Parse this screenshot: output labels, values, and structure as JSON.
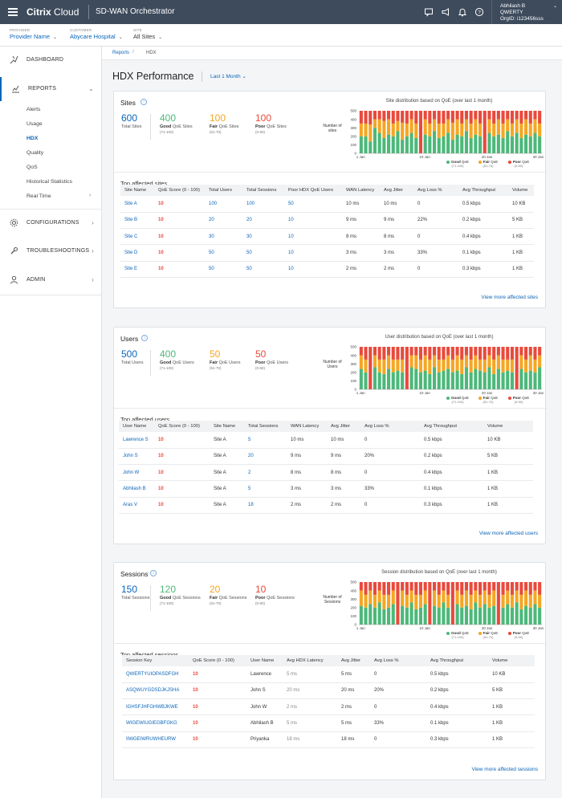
{
  "topbar": {
    "brand_bold": "Citrix",
    "brand_light": "Cloud",
    "product": "SD-WAN Orchestrator",
    "user_name": "Abhilash B",
    "user_org": "QWERTY",
    "user_orgid": "OrgID: i123456sss",
    "icons": [
      "chat-icon",
      "megaphone-icon",
      "bell-icon",
      "help-icon"
    ]
  },
  "filters": [
    {
      "label": "PROVIDER",
      "value": "Provider Name"
    },
    {
      "label": "CUSTOMER",
      "value": "Abycare Hospital"
    },
    {
      "label": "SITE",
      "value": "All Sites"
    }
  ],
  "nav": {
    "dashboard": "DASHBOARD",
    "reports": "REPORTS",
    "reports_sub": [
      "Alerts",
      "Usage",
      "HDX",
      "Quality",
      "QoS",
      "Historical Statistics",
      "Real Time"
    ],
    "configurations": "CONFIGURATIONS",
    "troubleshootings": "TROUBLESHOOTINGS",
    "admin": "ADMIN"
  },
  "breadcrumb": {
    "parent": "Reports",
    "sep": "/",
    "current": "HDX"
  },
  "page": {
    "title": "HDX Performance",
    "range": "Last 1 Month"
  },
  "colors": {
    "good": "#4cb87a",
    "fair": "#f5a623",
    "poor": "#e84a3c",
    "link": "#0b65b8",
    "topbar": "#3d4b5c"
  },
  "legend": {
    "good": "Good",
    "fair": "Fair",
    "poor": "Poor",
    "suffix": "QoE",
    "good_range": "(71-100)",
    "fair_range": "(51-70)",
    "poor_range": "(0-50)"
  },
  "sites": {
    "title": "Sites",
    "total": "600",
    "total_label": "Total Sites",
    "good": "400",
    "good_label_b": "Good",
    "good_label": "QoE Sites",
    "good_range": "(71-100)",
    "fair": "100",
    "fair_label_b": "Fair",
    "fair_label": "QoE Sites",
    "fair_range": "(51-70)",
    "poor": "100",
    "poor_label_b": "Poor",
    "poor_label": "QoE Sites",
    "poor_range": "(0-50)",
    "chart_title": "Site distribution based on QoE (over last 1 month)",
    "y_axis_label": "Number of sites",
    "y_ticks": [
      "500",
      "400",
      "300",
      "200",
      "100",
      "0"
    ],
    "x_ticks": [
      "1 Jan",
      "10 Jan",
      "20 Jan",
      "30 Jan"
    ],
    "table_title": "Top affected sites",
    "columns": [
      "Site Name",
      "QoE Score (0 - 100)",
      "Total Users",
      "Total Sessions",
      "Poor HDX QoE Users",
      "WAN Latency",
      "Avg Jitter",
      "Avg Loss %",
      "Avg Throughput",
      "Volume"
    ],
    "rows": [
      [
        "Site A",
        "10",
        "100",
        "100",
        "50",
        "10 ms",
        "10 ms",
        "0",
        "0.5 kbps",
        "10 KB"
      ],
      [
        "Site B",
        "10",
        "20",
        "20",
        "10",
        "9 ms",
        "9 ms",
        "22%",
        "0.2 kbps",
        "5 KB"
      ],
      [
        "Site C",
        "10",
        "30",
        "30",
        "10",
        "8 ms",
        "8 ms",
        "0",
        "0.4 kbps",
        "1 KB"
      ],
      [
        "Site D",
        "10",
        "50",
        "50",
        "10",
        "3 ms",
        "3 ms",
        "33%",
        "0.1 kbps",
        "1 KB"
      ],
      [
        "Site E",
        "10",
        "50",
        "50",
        "10",
        "2 ms",
        "2 ms",
        "0",
        "0.3 kbps",
        "1 KB"
      ]
    ],
    "view_more": "View more affected sites"
  },
  "users": {
    "title": "Users",
    "total": "500",
    "total_label": "Total Users",
    "good": "400",
    "good_label_b": "Good",
    "good_label": "QoE Users",
    "good_range": "(71-100)",
    "fair": "50",
    "fair_label_b": "Fair",
    "fair_label": "QoE Users",
    "fair_range": "(51-70)",
    "poor": "50",
    "poor_label_b": "Poor",
    "poor_label": "QoE Users",
    "poor_range": "(0-50)",
    "chart_title": "User distribution based on QoE (over last 1 month)",
    "y_axis_label": "Number of Users",
    "y_ticks": [
      "500",
      "400",
      "300",
      "200",
      "100",
      "0"
    ],
    "x_ticks": [
      "1 Jan",
      "10 Jan",
      "20 Jan",
      "30 Jan"
    ],
    "table_title": "Top affected users",
    "columns": [
      "User Name",
      "QoE Score (0 - 100)",
      "Site Name",
      "Total Sessions",
      "WAN Latency",
      "Avg Jitter",
      "Avg Loss %",
      "Avg Throughput",
      "Volume"
    ],
    "rows": [
      [
        "Lawrence S",
        "10",
        "Site A",
        "5",
        "10 ms",
        "10 ms",
        "0",
        "0.5 kbps",
        "10 KB"
      ],
      [
        "John S",
        "10",
        "Site A",
        "20",
        "9 ms",
        "9 ms",
        "20%",
        "0.2 kbps",
        "5 KB"
      ],
      [
        "John W",
        "10",
        "Site A",
        "2",
        "8 ms",
        "8 ms",
        "0",
        "0.4 kbps",
        "1 KB"
      ],
      [
        "Abhilash B",
        "10",
        "Site A",
        "5",
        "3 ms",
        "3 ms",
        "33%",
        "0.1 kbps",
        "1 KB"
      ],
      [
        "Aras V",
        "10",
        "Site A",
        "18",
        "2 ms",
        "2 ms",
        "0",
        "0.3 kbps",
        "1 KB"
      ]
    ],
    "view_more": "View more affected users"
  },
  "sessions": {
    "title": "Sessions",
    "total": "150",
    "total_label": "Total Sessions",
    "good": "120",
    "good_label_b": "Good",
    "good_label": "QoE Sessions",
    "good_range": "(71-100)",
    "fair": "20",
    "fair_label_b": "Fair",
    "fair_label": "QoE Sessions",
    "fair_range": "(51-70)",
    "poor": "10",
    "poor_label_b": "Poor",
    "poor_label": "QoE Sessions",
    "poor_range": "(0-50)",
    "chart_title": "Session distribution based on QoE (over last 1 month)",
    "y_axis_label": "Number of Sessions",
    "y_ticks": [
      "500",
      "400",
      "300",
      "200",
      "100",
      "0"
    ],
    "x_ticks": [
      "1 Jan",
      "10 Jan",
      "20 Jan",
      "30 Jan"
    ],
    "table_title": "Top affected sessions",
    "columns": [
      "Session Key",
      "QoE Score (0 - 100)",
      "User Name",
      "Avg HDX Latency",
      "Avg Jitter",
      "Avg Loss %",
      "Avg Throughput",
      "Volume"
    ],
    "rows": [
      [
        "QWERTYUIOPASDFGH",
        "10",
        "Lawrence",
        "5 ms",
        "5 ms",
        "0",
        "0.5 kbps",
        "10 KB"
      ],
      [
        "ASQWUYGDSDJKJSHA",
        "10",
        "John S",
        "20 ms",
        "20 ms",
        "20%",
        "0.2 kbps",
        "5 KB"
      ],
      [
        "IGHSFJHFGHWBJKWE",
        "10",
        "John W",
        "2 ms",
        "2 ms",
        "0",
        "0.4 kbps",
        "1 KB"
      ],
      [
        "WIGEWIUGIEGBFGKG",
        "10",
        "Abhilash B",
        "5 ms",
        "5 ms",
        "33%",
        "0.1 kbps",
        "1 KB"
      ],
      [
        "IIWGEIWRUWHEURW",
        "10",
        "Priyanka",
        "18 ms",
        "18 ms",
        "0",
        "0.3 kbps",
        "1 KB"
      ]
    ],
    "view_more": "View more affected sessions"
  },
  "chart_data": [
    {
      "type": "bar",
      "stacked": true,
      "title": "Site distribution based on QoE (over last 1 month)",
      "ylabel": "Number of sites",
      "ylim": [
        0,
        500
      ],
      "x_ticks": [
        "1 Jan",
        "10 Jan",
        "20 Jan",
        "30 Jan"
      ],
      "bar_count": 40,
      "series": [
        {
          "name": "Good QoE",
          "values": [
            200,
            200,
            140,
            300,
            240,
            180,
            220,
            200,
            260,
            160,
            200,
            240,
            180,
            0,
            220,
            200,
            260,
            180,
            200,
            240,
            160,
            220,
            200,
            260,
            180,
            220,
            200,
            0,
            240,
            200,
            220,
            180,
            260,
            200,
            240,
            180,
            220,
            200,
            240,
            200
          ]
        },
        {
          "name": "Fair QoE",
          "values": [
            150,
            150,
            200,
            100,
            160,
            200,
            180,
            150,
            120,
            200,
            150,
            160,
            170,
            0,
            180,
            150,
            140,
            170,
            150,
            160,
            200,
            180,
            150,
            140,
            170,
            180,
            150,
            0,
            160,
            150,
            180,
            170,
            140,
            150,
            160,
            170,
            180,
            150,
            160,
            150
          ]
        },
        {
          "name": "Poor QoE",
          "values": [
            150,
            150,
            160,
            100,
            100,
            120,
            100,
            150,
            120,
            140,
            150,
            100,
            150,
            500,
            100,
            150,
            100,
            150,
            150,
            100,
            140,
            100,
            150,
            100,
            150,
            100,
            150,
            500,
            100,
            150,
            100,
            150,
            100,
            150,
            100,
            150,
            100,
            150,
            100,
            150
          ]
        }
      ]
    },
    {
      "type": "bar",
      "stacked": true,
      "title": "User distribution based on QoE (over last 1 month)",
      "ylabel": "Number of Users",
      "ylim": [
        0,
        500
      ],
      "x_ticks": [
        "1 Jan",
        "10 Jan",
        "20 Jan",
        "30 Jan"
      ],
      "bar_count": 40,
      "series": [
        {
          "name": "Good QoE",
          "values": [
            240,
            200,
            0,
            260,
            200,
            180,
            240,
            200,
            220,
            200,
            0,
            260,
            240,
            200,
            220,
            180,
            260,
            200,
            220,
            240,
            200,
            220,
            180,
            260,
            200,
            240,
            220,
            200,
            260,
            180,
            240,
            200,
            220,
            200,
            0,
            240,
            200,
            220,
            200,
            260
          ]
        },
        {
          "name": "Fair QoE",
          "values": [
            160,
            150,
            0,
            140,
            150,
            170,
            160,
            150,
            130,
            150,
            0,
            140,
            160,
            150,
            180,
            170,
            140,
            150,
            130,
            160,
            150,
            180,
            170,
            140,
            150,
            160,
            130,
            150,
            140,
            170,
            160,
            150,
            130,
            150,
            0,
            160,
            150,
            180,
            150,
            140
          ]
        },
        {
          "name": "Poor QoE",
          "values": [
            100,
            150,
            500,
            100,
            150,
            150,
            100,
            150,
            150,
            150,
            500,
            100,
            100,
            150,
            100,
            150,
            100,
            150,
            150,
            100,
            150,
            100,
            150,
            100,
            150,
            100,
            150,
            150,
            100,
            150,
            100,
            150,
            150,
            150,
            500,
            100,
            150,
            100,
            150,
            100
          ]
        }
      ]
    },
    {
      "type": "bar",
      "stacked": true,
      "title": "Session distribution based on QoE (over last 1 month)",
      "ylabel": "Number of Sessions",
      "ylim": [
        0,
        500
      ],
      "x_ticks": [
        "1 Jan",
        "10 Jan",
        "20 Jan",
        "30 Jan"
      ],
      "bar_count": 40,
      "series": [
        {
          "name": "Good QoE",
          "values": [
            220,
            200,
            240,
            200,
            260,
            180,
            200,
            240,
            0,
            220,
            200,
            260,
            180,
            200,
            240,
            0,
            220,
            200,
            260,
            200,
            0,
            240,
            200,
            220,
            180,
            260,
            200,
            240,
            200,
            220,
            0,
            200,
            240,
            200,
            260,
            180,
            220,
            200,
            240,
            200
          ]
        },
        {
          "name": "Fair QoE",
          "values": [
            180,
            150,
            160,
            150,
            140,
            170,
            150,
            160,
            0,
            180,
            150,
            140,
            170,
            150,
            160,
            0,
            180,
            150,
            140,
            150,
            0,
            160,
            150,
            180,
            170,
            140,
            150,
            160,
            150,
            180,
            0,
            150,
            160,
            150,
            140,
            170,
            180,
            150,
            160,
            150
          ]
        },
        {
          "name": "Poor QoE",
          "values": [
            100,
            150,
            100,
            150,
            100,
            150,
            150,
            100,
            500,
            100,
            150,
            100,
            150,
            150,
            100,
            500,
            100,
            150,
            100,
            150,
            500,
            100,
            150,
            100,
            150,
            100,
            150,
            100,
            150,
            100,
            500,
            150,
            100,
            150,
            100,
            150,
            100,
            150,
            100,
            150
          ]
        }
      ]
    }
  ]
}
